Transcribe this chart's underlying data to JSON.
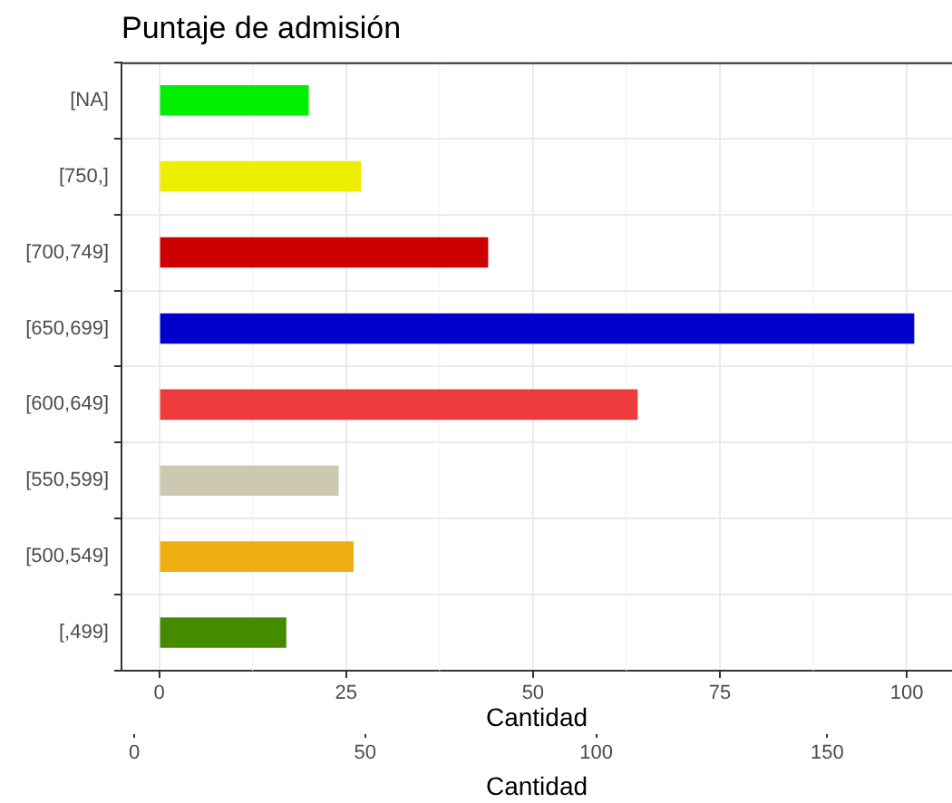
{
  "chart_data": {
    "type": "bar",
    "orientation": "horizontal",
    "title": "Puntaje de admisión",
    "xlabel": "Cantidad",
    "x2label": "Cantidad",
    "categories": [
      "[NA]",
      "[750,]",
      "[700,749]",
      "[650,699]",
      "[600,649]",
      "[550,599]",
      "[500,549]",
      "[,499]"
    ],
    "values": [
      20,
      27,
      44,
      101,
      64,
      24,
      26,
      17
    ],
    "colors": [
      "#00ee00",
      "#eeee00",
      "#cd0000",
      "#0000cd",
      "#ee3b3b",
      "#cdc8b1",
      "#eeae10",
      "#458b00"
    ],
    "xlim": [
      -5.05,
      106.05
    ],
    "xticks": [
      0,
      25,
      50,
      75,
      100
    ],
    "x2lim": [
      -2.75,
      177
    ],
    "x2ticks": [
      0,
      50,
      100,
      150
    ],
    "grid": true,
    "legend": false
  }
}
